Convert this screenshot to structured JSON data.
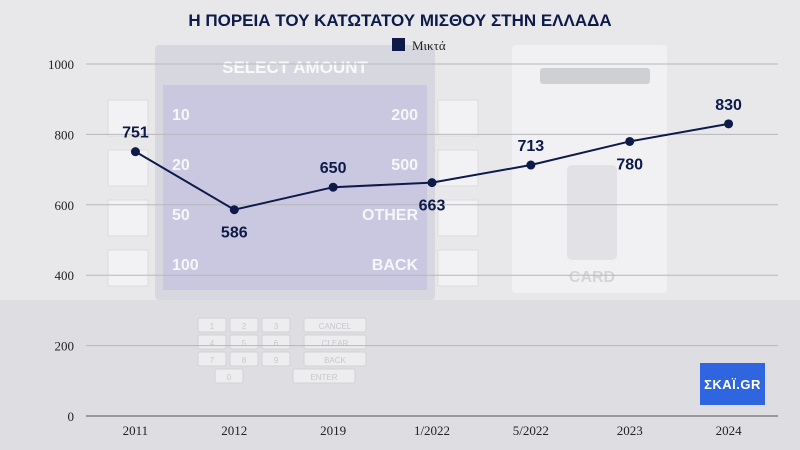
{
  "chart_data": {
    "type": "line",
    "title": "Η ΠΟΡΕΙΑ ΤΟΥ ΚΑΤΩΤΑΤΟΥ ΜΙΣΘΟΥ ΣΤΗΝ ΕΛΛΑΔΑ",
    "categories": [
      "2011",
      "2012",
      "2019",
      "1/2022",
      "5/2022",
      "2023",
      "2024"
    ],
    "series": [
      {
        "name": "Μικτά",
        "values": [
          751,
          586,
          650,
          663,
          713,
          780,
          830
        ]
      }
    ],
    "ylim": [
      0,
      1000
    ],
    "yticks": [
      0,
      200,
      400,
      600,
      800,
      1000
    ],
    "grid": true,
    "legend": "top",
    "colors": {
      "line": "#0d1a4a",
      "title": "#0d1a4a"
    }
  },
  "background": {
    "atm_screen_title": "SELECT AMOUNT",
    "atm_left_options": [
      "10",
      "20",
      "50",
      "100"
    ],
    "atm_right_options": [
      "200",
      "500",
      "OTHER",
      "BACK"
    ],
    "card_label": "CARD",
    "keypad_keys": [
      "1",
      "2",
      "3",
      "CANCEL",
      "4",
      "5",
      "6",
      "CLEAR",
      "7",
      "8",
      "9",
      "BACK",
      "0",
      "ENTER"
    ]
  },
  "logo": {
    "text": "ΣΚΑΪ.GR",
    "color": "#2f66e0"
  }
}
